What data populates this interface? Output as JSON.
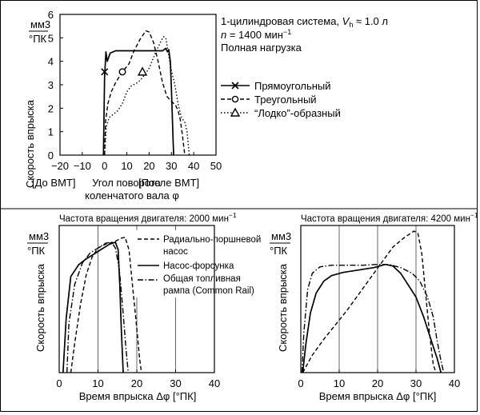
{
  "chart_data": [
    {
      "type": "line",
      "ylabel": "Скорость впрыска",
      "ylabel_unit_top": "мм3",
      "ylabel_unit_bottom": "°ПК",
      "xlabel_lines": [
        "Угол поворота",
        "коленчатого вала φ"
      ],
      "x_side_labels": [
        "[До ВМТ]",
        "[После ВМТ]"
      ],
      "xlim": [
        -20,
        50
      ],
      "ylim": [
        0,
        6
      ],
      "xticks": [
        "−20",
        "−10",
        "0",
        "10",
        "20",
        "30",
        "40",
        "50"
      ],
      "yticks": [
        "0",
        "1",
        "2",
        "3",
        "4",
        "5",
        "6"
      ],
      "annotation": {
        "line1_prefix": "1-цилиндровая система, ",
        "line1_var": "V",
        "line1_sub": "h",
        "line1_suffix": " ≈ 1.0 л",
        "line2_var": "n",
        "line2_value": " = 1400 мин",
        "line2_sup": "−1",
        "line3": "Полная нагрузка"
      },
      "legend_position": "right",
      "series": [
        {
          "name": "Прямоугольный",
          "style": "solid",
          "marker": "x",
          "marker_at": [
            0,
            3.55
          ],
          "points": [
            [
              -0.5,
              0
            ],
            [
              0,
              3.3
            ],
            [
              0.6,
              4.4
            ],
            [
              1.2,
              4.0
            ],
            [
              2.5,
              4.35
            ],
            [
              5,
              4.45
            ],
            [
              10,
              4.45
            ],
            [
              15,
              4.45
            ],
            [
              20,
              4.45
            ],
            [
              26,
              4.45
            ],
            [
              27.5,
              4.55
            ],
            [
              28.2,
              4.4
            ],
            [
              28.8,
              4.5
            ],
            [
              29.5,
              4.0
            ],
            [
              30,
              2.8
            ],
            [
              30.8,
              0.5
            ],
            [
              31,
              0
            ]
          ]
        },
        {
          "name": "Треугольный",
          "style": "dashed",
          "marker": "circle",
          "marker_at": [
            8,
            3.55
          ],
          "points": [
            [
              0,
              0
            ],
            [
              0.5,
              1.5
            ],
            [
              1.5,
              2.2
            ],
            [
              3,
              2.7
            ],
            [
              5,
              3.1
            ],
            [
              8,
              3.55
            ],
            [
              11,
              3.9
            ],
            [
              13,
              4.4
            ],
            [
              16,
              4.95
            ],
            [
              18.5,
              5.3
            ],
            [
              20,
              5.25
            ],
            [
              22,
              4.8
            ],
            [
              24,
              4.0
            ],
            [
              26,
              3.1
            ],
            [
              28,
              2.5
            ],
            [
              30,
              2.3
            ],
            [
              32,
              2.1
            ],
            [
              33,
              1.9
            ],
            [
              34,
              1.5
            ],
            [
              35,
              0.8
            ],
            [
              36,
              0
            ]
          ]
        },
        {
          "name": "“Лодко”-образный",
          "style": "dotted",
          "marker": "triangle",
          "marker_at": [
            17,
            3.55
          ],
          "points": [
            [
              0,
              0
            ],
            [
              0.8,
              1.2
            ],
            [
              2,
              1.6
            ],
            [
              4,
              1.75
            ],
            [
              6,
              1.9
            ],
            [
              8,
              2.2
            ],
            [
              10,
              2.7
            ],
            [
              12,
              2.95
            ],
            [
              15,
              3.1
            ],
            [
              17,
              3.3
            ],
            [
              20,
              3.7
            ],
            [
              23,
              4.4
            ],
            [
              25,
              4.8
            ],
            [
              26.5,
              5.05
            ],
            [
              27.5,
              5.0
            ],
            [
              28.5,
              4.4
            ],
            [
              30,
              3.6
            ],
            [
              31.5,
              3.0
            ],
            [
              33,
              2.2
            ],
            [
              34.5,
              1.6
            ],
            [
              36,
              1.4
            ],
            [
              37,
              1.0
            ],
            [
              38,
              0
            ]
          ]
        }
      ]
    },
    {
      "type": "line",
      "title": "Частота вращения двигателя: 2000 мин",
      "title_sup": "−1",
      "ylabel": "Скорость впрыска",
      "ylabel_unit_top": "мм3",
      "ylabel_unit_bottom": "°ПК",
      "xlabel": "Время впрыска Δφ [°ПК]",
      "xlim": [
        0,
        40
      ],
      "xticks": [
        "0",
        "10",
        "20",
        "30",
        "40"
      ],
      "grid_x": [
        10,
        20,
        30
      ],
      "legend_position": "top-right",
      "series": [
        {
          "name": "Радиально-поршневой насос",
          "name_lines": [
            "Радиально-поршневой",
            "насос"
          ],
          "style": "dashed",
          "points": [
            [
              3,
              0
            ],
            [
              4,
              30
            ],
            [
              5.5,
              70
            ],
            [
              7,
              100
            ],
            [
              8.5,
              118
            ],
            [
              10,
              127
            ],
            [
              12,
              131
            ],
            [
              14,
              133
            ],
            [
              16,
              137
            ],
            [
              17,
              138
            ],
            [
              18,
              125
            ],
            [
              19,
              85
            ],
            [
              20,
              45
            ],
            [
              20.7,
              15
            ],
            [
              21.2,
              0
            ]
          ]
        },
        {
          "name": "Насос-форсунка",
          "style": "solid",
          "points": [
            [
              1,
              0
            ],
            [
              1.8,
              55
            ],
            [
              3,
              98
            ],
            [
              5,
              110
            ],
            [
              7,
              116
            ],
            [
              9,
              121
            ],
            [
              11,
              126
            ],
            [
              13,
              131
            ],
            [
              14.5,
              133
            ],
            [
              15.2,
              125
            ],
            [
              15.6,
              90
            ],
            [
              16,
              45
            ],
            [
              16.5,
              0
            ]
          ]
        },
        {
          "name": "Общая топливная рампа (Common Rail)",
          "name_lines": [
            "Общая топливная",
            "рампа (Common Rail)"
          ],
          "style": "dashdot",
          "points": [
            [
              2,
              0
            ],
            [
              2.5,
              50
            ],
            [
              4,
              90
            ],
            [
              6,
              112
            ],
            [
              8,
              122
            ],
            [
              10,
              127
            ],
            [
              12,
              132
            ],
            [
              13.5,
              133
            ],
            [
              14.5,
              127
            ],
            [
              15.5,
              105
            ],
            [
              16.5,
              60
            ],
            [
              17.2,
              25
            ],
            [
              17.8,
              0
            ]
          ]
        }
      ]
    },
    {
      "type": "line",
      "title": "Частота вращения двигателя: 4200 мин",
      "title_sup": "−1",
      "ylabel": "Скорость впрыска",
      "ylabel_unit_top": "мм3",
      "ylabel_unit_bottom": "°ПК",
      "xlabel": "Время впрыска Δφ [°ПК]",
      "xlim": [
        0,
        40
      ],
      "xticks": [
        "0",
        "10",
        "20",
        "30",
        "40"
      ],
      "grid_x": [
        10,
        20,
        30
      ],
      "series": [
        {
          "name": "Радиально-поршневой насос",
          "style": "dashed",
          "points": [
            [
              0.5,
              0
            ],
            [
              3,
              22
            ],
            [
              6,
              42
            ],
            [
              9,
              60
            ],
            [
              12,
              78
            ],
            [
              15,
              98
            ],
            [
              18,
              118
            ],
            [
              21,
              138
            ],
            [
              24,
              158
            ],
            [
              27,
              170
            ],
            [
              29.5,
              178
            ],
            [
              30.5,
              175
            ],
            [
              31.5,
              150
            ],
            [
              32.5,
              100
            ],
            [
              33.5,
              50
            ],
            [
              34.5,
              10
            ],
            [
              35.2,
              0
            ]
          ]
        },
        {
          "name": "Насос-форсунка",
          "style": "solid",
          "points": [
            [
              0.5,
              0
            ],
            [
              1.3,
              35
            ],
            [
              2.5,
              75
            ],
            [
              4,
              100
            ],
            [
              6,
              115
            ],
            [
              8,
              122
            ],
            [
              11,
              126
            ],
            [
              15,
              129
            ],
            [
              19,
              132
            ],
            [
              22,
              136
            ],
            [
              24,
              134
            ],
            [
              26,
              125
            ],
            [
              28,
              110
            ],
            [
              30,
              95
            ],
            [
              32,
              70
            ],
            [
              34,
              40
            ],
            [
              35.5,
              18
            ],
            [
              36.5,
              0
            ]
          ]
        },
        {
          "name": "Общая топливная рампа (Common Rail)",
          "style": "dashdot",
          "points": [
            [
              0.3,
              0
            ],
            [
              0.8,
              50
            ],
            [
              1.8,
              105
            ],
            [
              3,
              125
            ],
            [
              5,
              133
            ],
            [
              8,
              135
            ],
            [
              12,
              135
            ],
            [
              16,
              135
            ],
            [
              20,
              136
            ],
            [
              23,
              136
            ],
            [
              26,
              132
            ],
            [
              29,
              125
            ],
            [
              31,
              115
            ],
            [
              33,
              95
            ],
            [
              34.5,
              70
            ],
            [
              35.5,
              40
            ],
            [
              36.5,
              15
            ],
            [
              37.2,
              0
            ]
          ]
        }
      ]
    }
  ]
}
